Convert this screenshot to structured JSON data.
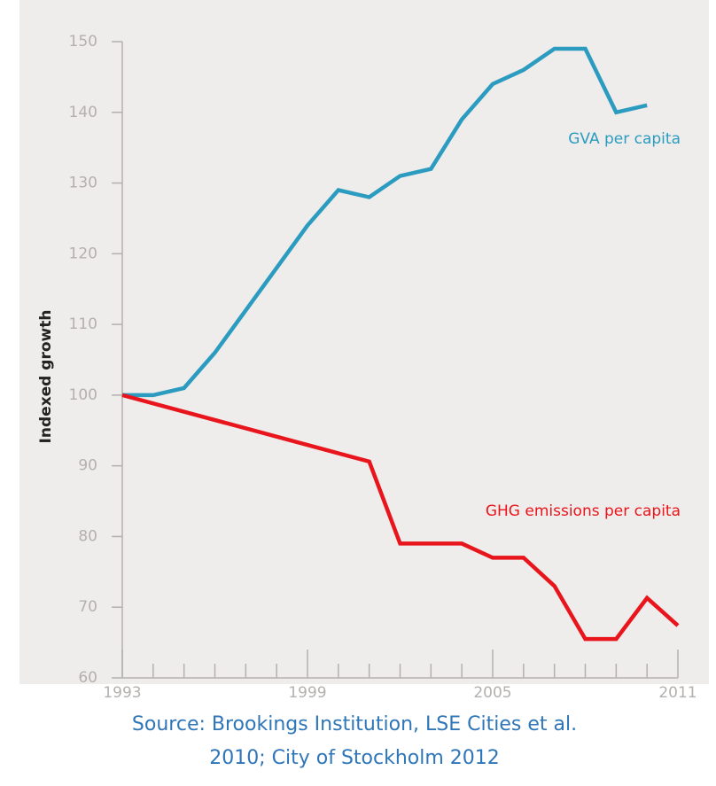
{
  "chart_data": {
    "type": "line",
    "y_label": "Indexed growth",
    "source": [
      "Source: Brookings Institution, LSE Cities et al.",
      "2010; City of Stockholm 2012"
    ],
    "xlim": [
      1993,
      2011
    ],
    "xticks": [
      1993,
      1999,
      2005,
      2011
    ],
    "xminorticks": [
      1994,
      1995,
      1996,
      1997,
      1998,
      2000,
      2001,
      2002,
      2003,
      2004,
      2006,
      2007,
      2008,
      2009,
      2010
    ],
    "ylim": [
      60,
      150
    ],
    "yticks": [
      60,
      70,
      80,
      90,
      100,
      110,
      120,
      130,
      140,
      150
    ],
    "series": [
      {
        "name": "GVA per capita",
        "color": "#2b9cc0",
        "x": [
          1993,
          1994,
          1995,
          1996,
          1997,
          1998,
          1999,
          2000,
          2001,
          2002,
          2003,
          2004,
          2005,
          2006,
          2007,
          2008,
          2009,
          2010
        ],
        "values": [
          100,
          100,
          101,
          106,
          112,
          118,
          124,
          129,
          128,
          131,
          132,
          139,
          144,
          146,
          149,
          149,
          140,
          141
        ]
      },
      {
        "name": "GHG emissions per capita",
        "color": "#e8151c",
        "x": [
          1993,
          2001,
          2002,
          2003,
          2004,
          2005,
          2006,
          2007,
          2008,
          2009,
          2010,
          2011
        ],
        "values": [
          100,
          90.6,
          79,
          79,
          79,
          77,
          77,
          73,
          65.5,
          65.5,
          71.3,
          67.4
        ]
      }
    ]
  }
}
